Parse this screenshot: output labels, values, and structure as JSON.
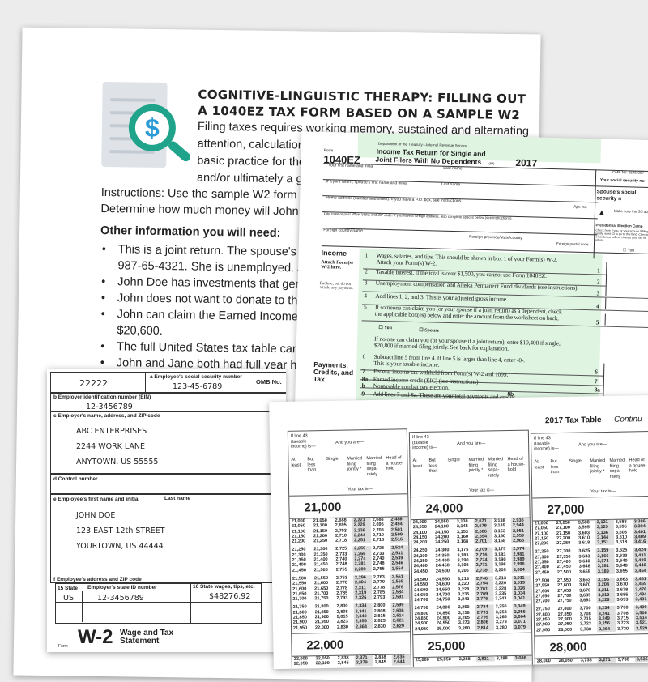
{
  "worksheet": {
    "icon": "document-dollar-magnifier-icon",
    "title": "COGNITIVE-LINGUISTIC THERAPY: FILLING OUT A 1040EZ TAX FORM BASED ON A SAMPLE W2",
    "intro_lines": [
      "Filing taxes requires working memory, sustained and alternating",
      "attention, calculation, and prob",
      "basic practice for those who ar",
      "and/or ultimately a goal of filir"
    ],
    "instructions_lines": [
      "Instructions: Use the sample W2 form to fill out the 1",
      "Determine how much money will John receive in a r"
    ],
    "other_heading": "Other information you will need:",
    "bullets": [
      "This is a joint return. The spouse's name is Jane D",
      "987-65-4321. She is unemployed. John and Jane",
      "John Doe has investments that generated $145",
      "John does not want to donate to the presidenti",
      "John can claim the Earned Income Credit (EIC) c",
      "$20,600.",
      "The full United States tax table can be found at",
      "John and Jane both had full year health insurar"
    ]
  },
  "form1040ez": {
    "form_word": "Form",
    "form_number": "1040EZ",
    "dept": "Department of the Treasury—Internal Revenue Service",
    "title1": "Income Tax Return for Single and",
    "title2": "Joint Filers With No Dependents",
    "code": "(99)",
    "year": "2017",
    "omb": "OMB No. 1545-007",
    "fields": {
      "first_name": "Your first name and initial",
      "last_name": "Last name",
      "ssn": "Your social security nu",
      "spouse_first": "If a joint return, spouse's first name and initial",
      "spouse_last": "Last name",
      "spouse_ssn": "Spouse's social security n",
      "home": "Home address (number and street). If you have a P.O. box, see instructions.",
      "apt": "Apt. no.",
      "make_sure": "Make sure the SS above are correc",
      "city": "City, town or post office, state, and ZIP code. If you have a foreign address, also complete spaces below (see instructions).",
      "pec": "Presidential Election Camp",
      "pec_text": "Check here if you, or your spouse if filing jointly, want $3 to go to this fund. Checking a box below will not change your tax or refund.",
      "pec_you": "You",
      "foreign_country": "Foreign country name",
      "foreign_province": "Foreign province/state/county",
      "foreign_postal": "Foreign postal code"
    },
    "income_heading": "Income",
    "attach": "Attach Form(s) W-2 here.",
    "enclose": "Enclose, but do not attach, any payment.",
    "lines": [
      {
        "num": "1",
        "text": "Wages, salaries, and tips. This should be shown in box 1 of your Form(s) W-2.",
        "text2": "Attach your Form(s) W-2.",
        "box": "1"
      },
      {
        "num": "2",
        "text": "Taxable interest. If the total is over $1,500, you cannot use Form 1040EZ.",
        "box": "2"
      },
      {
        "num": "3",
        "text": "Unemployment compensation and Alaska Permanent Fund dividends (see instructions).",
        "box": "3"
      },
      {
        "num": "4",
        "text": "Add lines 1, 2, and 3. This is your adjusted gross income.",
        "box": "4"
      },
      {
        "num": "5",
        "text": "If someone can claim you (or your spouse if a joint return) as a dependent, check",
        "text2": "the applicable box(es) below and enter the amount from the worksheet on back.",
        "box": "5"
      },
      {
        "num": "6",
        "text": "Subtract line 5 from line 4. If line 5 is larger than line 4, enter -0-.",
        "text2": "This is your taxable income.",
        "box": "6"
      },
      {
        "num": "7",
        "text": "Federal income tax withheld from Form(s) W-2 and 1099.",
        "box": "7"
      },
      {
        "num": "8a",
        "text": "Earned income credit (EIC) (see instructions)",
        "box": "8a"
      },
      {
        "num": "b",
        "text": "Nontaxable combat pay election.",
        "box": "8b"
      },
      {
        "num": "9",
        "text": "Add lines 7 and 8a. These are your total payments and credits.",
        "box": "9"
      }
    ],
    "checkbox_you": "You",
    "checkbox_spouse": "Spouse",
    "line5_note1": "If no one can claim you (or your spouse if a joint return), enter $10,400 if single;",
    "line5_note2": "$20,800 if married filing jointly. See back for explanation.",
    "payments_heading": "Payments, Credits, and Tax",
    "accent": "#dff5e2"
  },
  "w2": {
    "control_code": "22222",
    "ssn_label": "a Employee's social security number",
    "ssn": "123-45-6789",
    "omb": "OMB No.",
    "ein_label": "b Employer identification number (EIN)",
    "ein": "12-3456789",
    "employer_label": "c Employer's name, address, and ZIP code",
    "employer": [
      "ABC ENTERPRISES",
      "2244 WORK LANE",
      "ANYTOWN, US  55555"
    ],
    "control_label": "d Control number",
    "employee_label": "e Employee's first name and initial",
    "last_name_label": "Last name",
    "employee": [
      "JOHN DOE",
      "123 EAST 12th STREET",
      "YOURTOWN, US 44444"
    ],
    "address_label": "f Employee's address and ZIP code",
    "state_label": "15 State",
    "state_id_label": "Employer's state ID number",
    "state_wages_label": "16 State wages, tips, etc.",
    "state": "US",
    "state_id": "12-3456789",
    "state_wages": "$48276.92",
    "form_word": "Form",
    "form_name": "W-2",
    "form_title": "Wage and Tax Statement"
  },
  "tax_table": {
    "title": "2017 Tax Table",
    "title_suffix": "— Continu",
    "headers": {
      "if_line": "If line 43 (taxable income) is—",
      "and_you_are": "And you are—",
      "at_least": "At least",
      "but_less": "But less than",
      "single": "Single",
      "mfj": "Married filing jointly *",
      "mfs": "Married filing sepa-rately",
      "hoh": "Head of a house-hold",
      "your_tax": "Your tax is—"
    },
    "columns": [
      {
        "thousand": "21,000",
        "rows": [
          [
            "21,000",
            "21,050",
            "2,688",
            "2,221",
            "2,688",
            "2,486"
          ],
          [
            "21,050",
            "21,100",
            "2,695",
            "2,229",
            "2,695",
            "2,494"
          ],
          [
            "21,100",
            "21,150",
            "2,703",
            "2,236",
            "2,703",
            "2,501"
          ],
          [
            "21,150",
            "21,200",
            "2,710",
            "2,244",
            "2,710",
            "2,509"
          ],
          [
            "21,200",
            "21,250",
            "2,718",
            "2,251",
            "2,718",
            "2,516"
          ],
          [
            "21,250",
            "21,300",
            "2,725",
            "2,259",
            "2,725",
            "2,524"
          ],
          [
            "21,300",
            "21,350",
            "2,733",
            "2,266",
            "2,733",
            "2,531"
          ],
          [
            "21,350",
            "21,400",
            "2,740",
            "2,274",
            "2,740",
            "2,539"
          ],
          [
            "21,400",
            "21,450",
            "2,748",
            "2,281",
            "2,748",
            "2,546"
          ],
          [
            "21,450",
            "21,500",
            "2,755",
            "2,289",
            "2,755",
            "2,554"
          ],
          [
            "21,500",
            "21,550",
            "2,763",
            "2,296",
            "2,763",
            "2,561"
          ],
          [
            "21,550",
            "21,600",
            "2,770",
            "2,304",
            "2,770",
            "2,569"
          ],
          [
            "21,600",
            "21,650",
            "2,778",
            "2,311",
            "2,778",
            "2,576"
          ],
          [
            "21,650",
            "21,700",
            "2,785",
            "2,319",
            "2,785",
            "2,584"
          ],
          [
            "21,700",
            "21,750",
            "2,793",
            "2,326",
            "2,793",
            "2,591"
          ],
          [
            "21,750",
            "21,800",
            "2,800",
            "2,334",
            "2,800",
            "2,599"
          ],
          [
            "21,800",
            "21,850",
            "2,808",
            "2,341",
            "2,808",
            "2,606"
          ],
          [
            "21,850",
            "21,900",
            "2,815",
            "2,349",
            "2,815",
            "2,614"
          ],
          [
            "21,900",
            "21,950",
            "2,823",
            "2,356",
            "2,823",
            "2,621"
          ],
          [
            "21,950",
            "22,000",
            "2,830",
            "2,364",
            "2,830",
            "2,629"
          ]
        ],
        "next_thousand": "22,000",
        "next_rows": [
          [
            "22,000",
            "22,050",
            "2,838",
            "2,371",
            "2,838",
            "2,636"
          ],
          [
            "22,050",
            "22,100",
            "2,845",
            "2,379",
            "2,845",
            "2,644"
          ]
        ]
      },
      {
        "thousand": "24,000",
        "rows": [
          [
            "24,000",
            "24,050",
            "3,138",
            "2,671",
            "3,138",
            "2,936"
          ],
          [
            "24,050",
            "24,100",
            "3,145",
            "2,679",
            "3,145",
            "2,944"
          ],
          [
            "24,100",
            "24,150",
            "3,153",
            "2,686",
            "3,153",
            "2,951"
          ],
          [
            "24,150",
            "24,200",
            "3,160",
            "2,694",
            "3,160",
            "2,959"
          ],
          [
            "24,200",
            "24,250",
            "3,168",
            "2,701",
            "3,168",
            "2,966"
          ],
          [
            "24,250",
            "24,300",
            "3,175",
            "2,709",
            "3,175",
            "2,974"
          ],
          [
            "24,300",
            "24,350",
            "3,183",
            "2,716",
            "3,183",
            "2,981"
          ],
          [
            "24,350",
            "24,400",
            "3,190",
            "2,724",
            "3,190",
            "2,989"
          ],
          [
            "24,400",
            "24,450",
            "3,198",
            "2,731",
            "3,198",
            "2,996"
          ],
          [
            "24,450",
            "24,500",
            "3,205",
            "2,739",
            "3,205",
            "3,004"
          ],
          [
            "24,500",
            "24,550",
            "3,213",
            "2,746",
            "3,213",
            "3,011"
          ],
          [
            "24,550",
            "24,600",
            "3,220",
            "2,754",
            "3,220",
            "3,019"
          ],
          [
            "24,600",
            "24,650",
            "3,228",
            "2,761",
            "3,228",
            "3,026"
          ],
          [
            "24,650",
            "24,700",
            "3,235",
            "2,769",
            "3,235",
            "3,034"
          ],
          [
            "24,700",
            "24,750",
            "3,243",
            "2,776",
            "3,243",
            "3,041"
          ],
          [
            "24,750",
            "24,800",
            "3,250",
            "2,784",
            "3,250",
            "3,049"
          ],
          [
            "24,800",
            "24,850",
            "3,258",
            "2,791",
            "3,258",
            "3,056"
          ],
          [
            "24,850",
            "24,900",
            "3,265",
            "2,799",
            "3,265",
            "3,064"
          ],
          [
            "24,900",
            "24,950",
            "3,273",
            "2,806",
            "3,273",
            "3,071"
          ],
          [
            "24,950",
            "25,000",
            "3,280",
            "2,814",
            "3,280",
            "3,079"
          ]
        ],
        "next_thousand": "25,000",
        "next_rows": [
          [
            "25,000",
            "25,050",
            "3,288",
            "2,821",
            "3,288",
            "3,086"
          ]
        ]
      },
      {
        "thousand": "27,000",
        "rows": [
          [
            "27,000",
            "27,050",
            "3,588",
            "3,121",
            "3,588",
            "3,386"
          ],
          [
            "27,050",
            "27,100",
            "3,595",
            "3,129",
            "3,595",
            "3,394"
          ],
          [
            "27,100",
            "27,150",
            "3,603",
            "3,136",
            "3,603",
            "3,401"
          ],
          [
            "27,150",
            "27,200",
            "3,610",
            "3,144",
            "3,610",
            "3,409"
          ],
          [
            "27,200",
            "27,250",
            "3,618",
            "3,151",
            "3,618",
            "3,416"
          ],
          [
            "27,250",
            "27,300",
            "3,625",
            "3,159",
            "3,625",
            "3,424"
          ],
          [
            "27,300",
            "27,350",
            "3,633",
            "3,166",
            "3,633",
            "3,431"
          ],
          [
            "27,350",
            "27,400",
            "3,640",
            "3,174",
            "3,640",
            "3,439"
          ],
          [
            "27,400",
            "27,450",
            "3,648",
            "3,181",
            "3,648",
            "3,446"
          ],
          [
            "27,450",
            "27,500",
            "3,655",
            "3,189",
            "3,655",
            "3,454"
          ],
          [
            "27,500",
            "27,550",
            "3,663",
            "3,196",
            "3,663",
            "3,461"
          ],
          [
            "27,550",
            "27,600",
            "3,670",
            "3,204",
            "3,670",
            "3,469"
          ],
          [
            "27,600",
            "27,650",
            "3,678",
            "3,211",
            "3,678",
            "3,476"
          ],
          [
            "27,650",
            "27,700",
            "3,685",
            "3,219",
            "3,685",
            "3,484"
          ],
          [
            "27,700",
            "27,750",
            "3,693",
            "3,226",
            "3,693",
            "3,491"
          ],
          [
            "27,750",
            "27,800",
            "3,700",
            "3,234",
            "3,700",
            "3,499"
          ],
          [
            "27,800",
            "27,850",
            "3,708",
            "3,241",
            "3,708",
            "3,506"
          ],
          [
            "27,850",
            "27,900",
            "3,715",
            "3,249",
            "3,715",
            "3,514"
          ],
          [
            "27,900",
            "27,950",
            "3,723",
            "3,256",
            "3,723",
            "3,521"
          ],
          [
            "27,950",
            "28,000",
            "3,730",
            "3,264",
            "3,730",
            "3,529"
          ]
        ],
        "next_thousand": "28,000",
        "next_rows": [
          [
            "28,000",
            "28,050",
            "3,738",
            "3,271",
            "3,738",
            "3,536"
          ]
        ]
      }
    ]
  }
}
